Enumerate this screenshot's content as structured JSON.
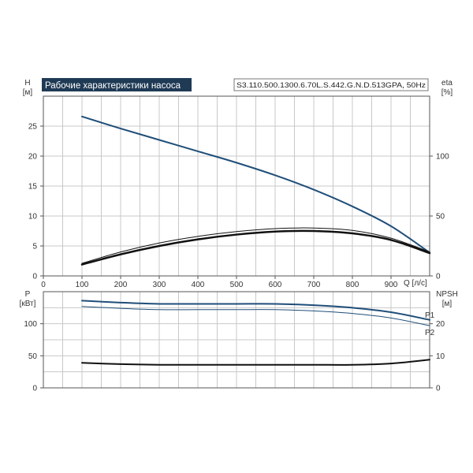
{
  "chart_data": [
    {
      "type": "line",
      "title": "Рабочие характеристики насоса",
      "model": "S3.110.500.1300.6.70L.S.442.G.N.D.513GPA, 50Hz",
      "left_axis": {
        "label": "H",
        "unit": "[м]",
        "range": [
          0,
          30
        ],
        "ticks": [
          0,
          5,
          10,
          15,
          20,
          25
        ]
      },
      "right_axis": {
        "label": "eta",
        "unit": "[%]",
        "range": [
          0,
          150
        ],
        "ticks": [
          0,
          50,
          100
        ]
      },
      "x_axis": {
        "label": "Q [л/с]",
        "range": [
          0,
          1000
        ],
        "ticks": [
          0,
          100,
          200,
          300,
          400,
          500,
          600,
          700,
          800,
          900
        ]
      },
      "grid": true,
      "series": [
        {
          "axis": "left",
          "color": "#1f4e79",
          "width": 2,
          "x": [
            100,
            200,
            300,
            400,
            500,
            600,
            700,
            800,
            900,
            1000
          ],
          "y": [
            26.6,
            24.6,
            22.7,
            20.8,
            18.9,
            16.8,
            14.4,
            11.6,
            8.3,
            3.9
          ]
        },
        {
          "axis": "left",
          "color": "#111111",
          "width": 2.5,
          "x": [
            100,
            200,
            300,
            400,
            500,
            600,
            700,
            800,
            900,
            1000
          ],
          "y": [
            1.9,
            3.6,
            5.0,
            6.1,
            6.9,
            7.4,
            7.5,
            7.1,
            6.0,
            3.8
          ]
        },
        {
          "axis": "left",
          "color": "#111111",
          "width": 1,
          "x": [
            100,
            200,
            300,
            400,
            500,
            600,
            700,
            800,
            900,
            1000
          ],
          "y": [
            2.1,
            4.0,
            5.5,
            6.6,
            7.4,
            7.9,
            8.0,
            7.6,
            6.3,
            4.0
          ]
        }
      ]
    },
    {
      "type": "line",
      "left_axis": {
        "label": "P",
        "unit": "[кВт]",
        "range": [
          0,
          150
        ],
        "ticks": [
          0,
          50,
          100
        ]
      },
      "right_axis": {
        "label": "NPSH",
        "unit": "[м]",
        "range": [
          0,
          30
        ],
        "ticks": [
          0,
          10,
          20
        ]
      },
      "x_axis": {
        "range": [
          0,
          1000
        ]
      },
      "grid": true,
      "series": [
        {
          "name": "P1",
          "axis": "left",
          "color": "#1f4e79",
          "width": 2,
          "x": [
            100,
            200,
            300,
            400,
            500,
            600,
            700,
            800,
            900,
            1000
          ],
          "y": [
            136,
            133,
            131,
            131,
            131,
            131,
            129,
            125,
            118,
            106
          ]
        },
        {
          "name": "P2",
          "axis": "left",
          "color": "#1f4e79",
          "width": 1,
          "x": [
            100,
            200,
            300,
            400,
            500,
            600,
            700,
            800,
            900,
            1000
          ],
          "y": [
            127,
            124,
            122,
            122,
            122,
            122,
            120,
            116,
            109,
            97
          ]
        },
        {
          "axis": "left",
          "color": "#111111",
          "width": 2,
          "x": [
            100,
            200,
            300,
            400,
            500,
            600,
            700,
            800,
            900,
            1000
          ],
          "y": [
            39,
            37,
            36,
            36,
            36,
            36,
            36,
            36,
            38,
            44
          ]
        }
      ]
    }
  ]
}
